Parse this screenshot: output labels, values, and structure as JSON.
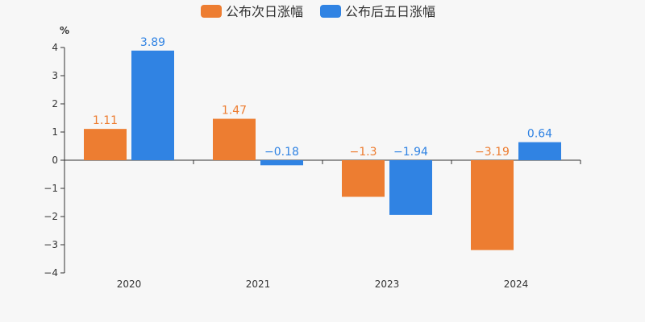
{
  "chart_data": {
    "type": "bar",
    "unit": "%",
    "categories": [
      "2020",
      "2021",
      "2023",
      "2024"
    ],
    "series": [
      {
        "name": "公布次日涨幅",
        "color": "#ed7d31",
        "values": [
          1.11,
          1.47,
          -1.3,
          -3.19
        ]
      },
      {
        "name": "公布后五日涨幅",
        "color": "#3083e3",
        "values": [
          3.89,
          -0.18,
          -1.94,
          0.64
        ]
      }
    ],
    "value_labels": [
      [
        "1.11",
        "1.47",
        "−1.3",
        "−3.19"
      ],
      [
        "3.89",
        "−0.18",
        "−1.94",
        "0.64"
      ]
    ],
    "ylim": [
      -4,
      4
    ],
    "yticks": [
      4,
      3,
      2,
      1,
      0,
      -1,
      -2,
      -3,
      -4
    ],
    "ytick_labels": [
      "4",
      "3",
      "2",
      "1",
      "0",
      "−1",
      "−2",
      "−3",
      "−4"
    ],
    "grid": false,
    "legend_position": "top-center"
  }
}
